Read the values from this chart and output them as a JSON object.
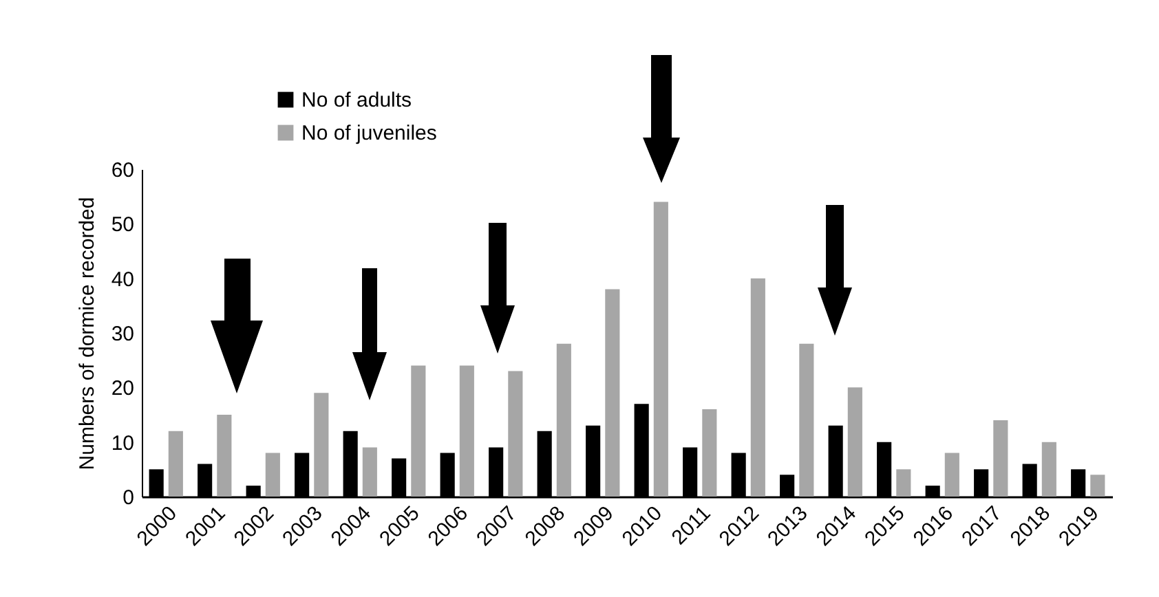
{
  "chart_data": {
    "type": "bar",
    "ylabel": "Numbers of dormice recorded",
    "categories": [
      "2000",
      "2001",
      "2002",
      "2003",
      "2004",
      "2005",
      "2006",
      "2007",
      "2008",
      "2009",
      "2010",
      "2011",
      "2012",
      "2013",
      "2014",
      "2015",
      "2016",
      "2017",
      "2018",
      "2019"
    ],
    "series": [
      {
        "name": "No of adults",
        "color": "#000000",
        "values": [
          5,
          6,
          2,
          8,
          12,
          7,
          8,
          9,
          12,
          13,
          17,
          9,
          8,
          4,
          13,
          10,
          2,
          5,
          6,
          5
        ]
      },
      {
        "name": "No of juveniles",
        "color": "#a6a6a6",
        "values": [
          12,
          15,
          8,
          19,
          9,
          24,
          24,
          23,
          28,
          38,
          54,
          16,
          40,
          28,
          20,
          5,
          8,
          14,
          10,
          4
        ]
      }
    ],
    "ylim": [
      0,
      60
    ],
    "yticks": [
      0,
      10,
      20,
      30,
      40,
      50,
      60
    ],
    "grid": false,
    "legend": "top left"
  }
}
